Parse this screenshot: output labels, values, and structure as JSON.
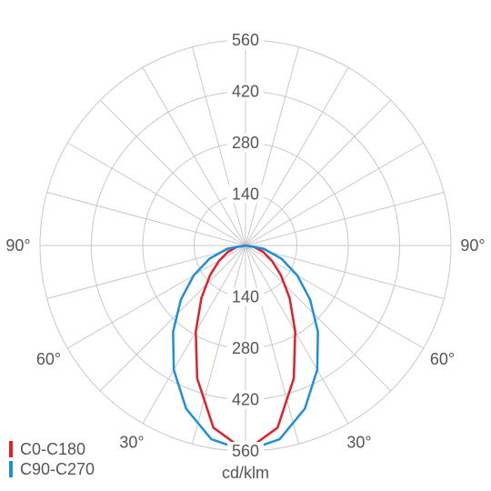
{
  "chart_data": {
    "type": "polar",
    "angles": [
      -90,
      -80,
      -70,
      -60,
      -50,
      -40,
      -30,
      -20,
      -10,
      0,
      10,
      20,
      30,
      40,
      50,
      60,
      70,
      80,
      90
    ],
    "series": [
      {
        "name": "C0-C180",
        "color": "#e0202a",
        "values": [
          0,
          24,
          51,
          83,
          126,
          187,
          271,
          385,
          504,
          560,
          504,
          385,
          271,
          187,
          126,
          83,
          51,
          24,
          0
        ]
      },
      {
        "name": "C90-C270",
        "color": "#1e90d8",
        "values": [
          0,
          50,
          104,
          163,
          230,
          307,
          391,
          473,
          536,
          560,
          536,
          473,
          391,
          307,
          230,
          163,
          104,
          50,
          0
        ]
      }
    ],
    "rlim": [
      0,
      560
    ],
    "rticks": [
      140,
      280,
      420,
      560
    ],
    "angle_ticks": [
      {
        "value": -90,
        "label": "90°"
      },
      {
        "value": -60,
        "label": "60°"
      },
      {
        "value": -30,
        "label": "30°"
      },
      {
        "value": 30,
        "label": "30°"
      },
      {
        "value": 60,
        "label": "60°"
      },
      {
        "value": 90,
        "label": "90°"
      }
    ],
    "unit_label": "cd/klm"
  }
}
